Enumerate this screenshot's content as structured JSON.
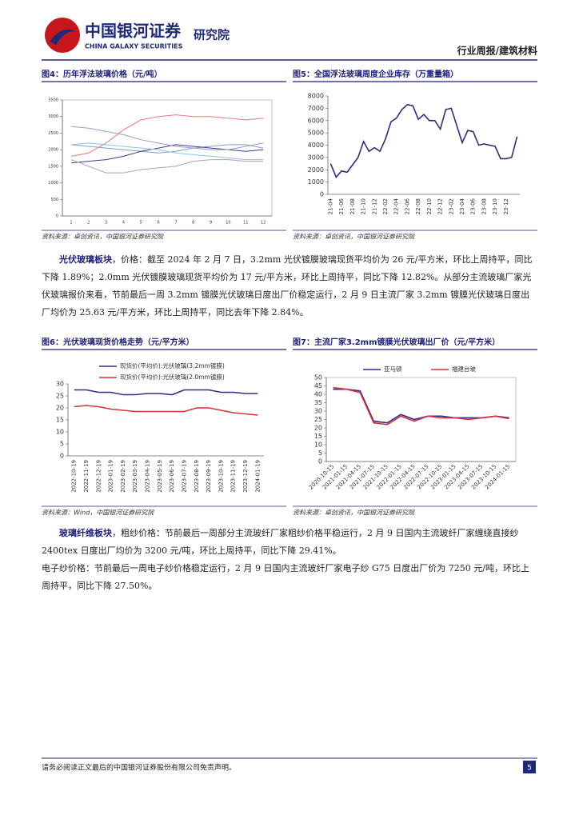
{
  "header": {
    "logo_cn": "中国银河证券",
    "logo_en": "CHINA GALAXY SECURITIES",
    "dept": "研究院",
    "section": "行业周报/建筑材料"
  },
  "figures": [
    {
      "title": "图4：历年浮法玻璃价格（元/吨）",
      "source": "资料来源：卓创资讯，中国银河证券研究院",
      "chart": {
        "type": "line",
        "categories": [
          1,
          2,
          3,
          4,
          5,
          6,
          7,
          8,
          9,
          10,
          11,
          12
        ],
        "ylim": [
          0,
          3500
        ],
        "yticks": [
          0,
          500,
          1000,
          1500,
          2000,
          2500,
          3000,
          3500
        ],
        "series": [
          {
            "color": "#7f9fc9",
            "values": [
              2150,
              2100,
              2050,
              2000,
              1950,
              1900,
              1950,
              2050,
              2100,
              2150,
              2150,
              2050
            ]
          },
          {
            "color": "#3c3c8c",
            "values": [
              1600,
              1650,
              1700,
              1800,
              1950,
              2050,
              2150,
              2100,
              2050,
              2000,
              1950,
              2000
            ]
          },
          {
            "color": "#b0a0c0",
            "values": [
              1700,
              1500,
              1300,
              1300,
              1400,
              1450,
              1500,
              1650,
              1700,
              1700,
              1650,
              1650
            ]
          },
          {
            "color": "#e87a80",
            "values": [
              1800,
              1900,
              2200,
              2600,
              2900,
              3000,
              3050,
              3000,
              3000,
              2950,
              2900,
              2950
            ]
          },
          {
            "color": "#8fc0e0",
            "values": [
              2150,
              2200,
              2150,
              2100,
              2050,
              2000,
              1900,
              1850,
              1800,
              1750,
              1700,
              1700
            ]
          },
          {
            "color": "#9a9ad0",
            "values": [
              2700,
              2650,
              2550,
              2450,
              2300,
              2200,
              2100,
              2050,
              2000,
              2000,
              2100,
              2200
            ]
          }
        ]
      }
    },
    {
      "title": "图5：全国浮法玻璃周度企业库存（万重量箱）",
      "source": "资料来源：卓创资讯，中国银河证券研究院",
      "chart": {
        "type": "line",
        "categories": [
          "21-04",
          null,
          "21-06",
          null,
          "21-08",
          null,
          "21-10",
          null,
          "21-12",
          null,
          "22-02",
          null,
          "22-04",
          null,
          "22-06",
          null,
          "22-08",
          null,
          "22-10",
          null,
          "22-12",
          null,
          "23-02",
          null,
          "23-04",
          null,
          "23-06",
          null,
          "23-08",
          null,
          "23-10",
          null,
          "23-12",
          null,
          null
        ],
        "ylim": [
          0,
          8000
        ],
        "yticks": [
          0,
          1000,
          2000,
          3000,
          4000,
          5000,
          6000,
          7000,
          8000
        ],
        "series": [
          {
            "color": "#2e2e7a",
            "values": [
              2500,
              1400,
              1900,
              1800,
              2400,
              3000,
              4300,
              3500,
              3800,
              3500,
              4500,
              5900,
              6200,
              6900,
              7300,
              7200,
              6100,
              6500,
              6000,
              6000,
              5300,
              6900,
              7000,
              5600,
              4200,
              5200,
              5100,
              4000,
              4100,
              4000,
              3900,
              2900,
              2900,
              3000,
              4700
            ]
          }
        ]
      }
    },
    {
      "title": "图6：光伏玻璃现货价格走势（元/平方米）",
      "source": "资料来源：Wind，中国银河证券研究院",
      "chart": {
        "type": "line",
        "categories": [
          "2022-10-19",
          "2022-11-19",
          "2022-12-19",
          "2023-01-19",
          "2023-02-19",
          "2023-03-19",
          "2023-04-19",
          "2023-05-19",
          "2023-06-19",
          "2023-07-19",
          "2023-08-19",
          "2023-09-19",
          "2023-10-19",
          "2023-11-19",
          "2023-12-19",
          "2024-01-19"
        ],
        "ylim": [
          0,
          30
        ],
        "yticks": [
          0,
          5,
          10,
          15,
          20,
          25,
          30
        ],
        "series": [
          {
            "name": "现货价(平均价):光伏玻璃(3.2mm镀膜)",
            "color": "#2e2e8c",
            "values": [
              27.5,
              27.5,
              26.5,
              26.5,
              25.5,
              25.5,
              26,
              26,
              25.5,
              27.5,
              27.5,
              27.5,
              26.5,
              26.5,
              26,
              26
            ]
          },
          {
            "name": "现货价(平均价):光伏玻璃(2.0mm镀膜)",
            "color": "#d8323c",
            "values": [
              20.5,
              21,
              20.5,
              19.5,
              19,
              18.5,
              18.5,
              18.5,
              18.5,
              18.5,
              20,
              20,
              19,
              18,
              17.5,
              17
            ]
          }
        ]
      }
    },
    {
      "title": "图7：主流厂家3.2mm镀膜光伏玻璃出厂价（元/平方米）",
      "source": "资料来源：卓创资讯，中国银河证券研究院",
      "chart": {
        "type": "line",
        "categories": [
          "2020-10-15",
          "2021-01-15",
          "2021-04-15",
          "2021-07-15",
          "2021-10-15",
          "2022-01-15",
          "2022-04-15",
          "2022-07-15",
          "2022-10-15",
          "2023-01-15",
          "2023-04-15",
          "2023-07-15",
          "2023-10-15",
          "2024-01-15"
        ],
        "ylim": [
          0,
          50
        ],
        "yticks": [
          0,
          5,
          10,
          15,
          20,
          25,
          30,
          35,
          40,
          45,
          50
        ],
        "series": [
          {
            "name": "亚马顿",
            "color": "#2e2e8c",
            "values": [
              43,
              43,
              42,
              24,
              23,
              28,
              25,
              27,
              27,
              26,
              26,
              26,
              27,
              26
            ]
          },
          {
            "name": "福建台玻",
            "color": "#d8323c",
            "values": [
              44,
              43,
              41,
              23,
              22,
              27,
              24,
              27,
              26,
              26,
              25,
              26,
              27,
              25.5
            ]
          }
        ]
      }
    }
  ],
  "paragraphs": [
    {
      "lead": "光伏玻璃板块",
      "text": "，价格：截至 2024 年 2 月 7 日，3.2mm 光伏镀膜玻璃现货平均价为 26 元/平方米，环比上周持平，同比下降 1.89%；2.0mm 光伏镀膜玻璃现货平均价为 17 元/平方米，环比上周持平，同比下降 12.82%。从部分主流玻璃厂家光伏玻璃报价来看，节前最后一周 3.2mm 镀膜光伏玻璃日度出厂价稳定运行，2 月 9 日主流厂家 3.2mm 镀膜光伏玻璃日度出厂均价为 25.63 元/平方米，环比上周持平，同比去年下降 2.84%。"
    },
    {
      "lead": "玻璃纤维板块",
      "text": "，粗纱价格：节前最后一周部分主流玻纤厂家粗纱价格平稳运行，2 月 9 日国内主流玻纤厂家缠绕直接纱 2400tex 日度出厂均价为 3200 元/吨，环比上周持平，同比下降 29.41%。"
    },
    {
      "text": "电子纱价格：节前最后一周电子纱价格稳定运行，2 月 9 日国内主流玻纤厂家电子纱 G75 日度出厂价为 7250 元/吨，环比上周持平，同比下降 27.50%。"
    }
  ],
  "footer": {
    "disclaimer": "请务必阅读正文最后的中国银河证券股份有限公司免责声明。",
    "page": 5
  }
}
